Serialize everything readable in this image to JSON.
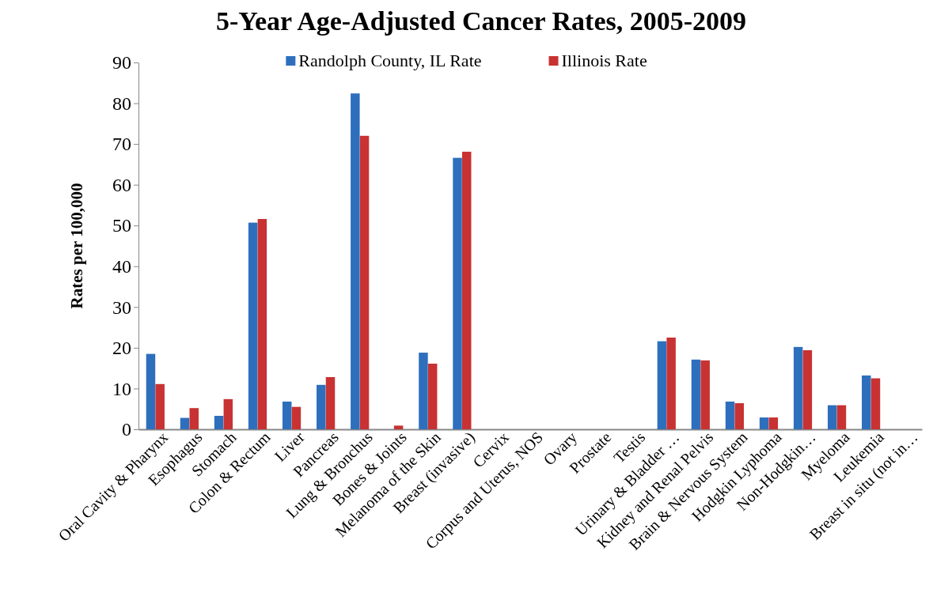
{
  "chart_data": {
    "type": "bar",
    "title": "5-Year Age-Adjusted Cancer Rates, 2005-2009",
    "ylabel": "Rates per 100,000",
    "categories": [
      "Oral Cavity & Pharynx",
      "Esophagus",
      "Stomach",
      "Colon & Rectum",
      "Liver",
      "Pancreas",
      "Lung & Bronchus",
      "Bones & Joints",
      "Melanoma of the Skin",
      "Breast (invasive)",
      "Cervix",
      "Corpus and Uterus, NOS",
      "Ovary",
      "Prostate",
      "Testis",
      "Urinary & Bladder …",
      "Kidney and Renal Pelvis",
      "Brain & Nervous System",
      "Hodgkin Lyphoma",
      "Non-Hodgkin…",
      "Myeloma",
      "Leukemia",
      "Breast in situ (not in…"
    ],
    "series": [
      {
        "name": "Randolph County, IL Rate",
        "color": "#2e6fbd",
        "values": [
          18.5,
          2.8,
          3.3,
          50.7,
          6.8,
          10.9,
          82.4,
          null,
          18.8,
          66.6,
          null,
          null,
          null,
          null,
          null,
          21.6,
          17.1,
          6.8,
          2.9,
          20.2,
          5.9,
          13.2,
          null
        ]
      },
      {
        "name": "Illinois Rate",
        "color": "#c83232",
        "values": [
          11.1,
          5.2,
          7.4,
          51.6,
          5.5,
          12.8,
          72.0,
          0.9,
          16.1,
          68.1,
          null,
          null,
          null,
          null,
          null,
          22.5,
          16.9,
          6.4,
          2.9,
          19.4,
          5.9,
          12.5,
          null
        ]
      }
    ],
    "ylim": [
      0,
      90
    ],
    "yticks": [
      0,
      10,
      20,
      30,
      40,
      50,
      60,
      70,
      80,
      90
    ],
    "grid": false,
    "legend": "top"
  }
}
